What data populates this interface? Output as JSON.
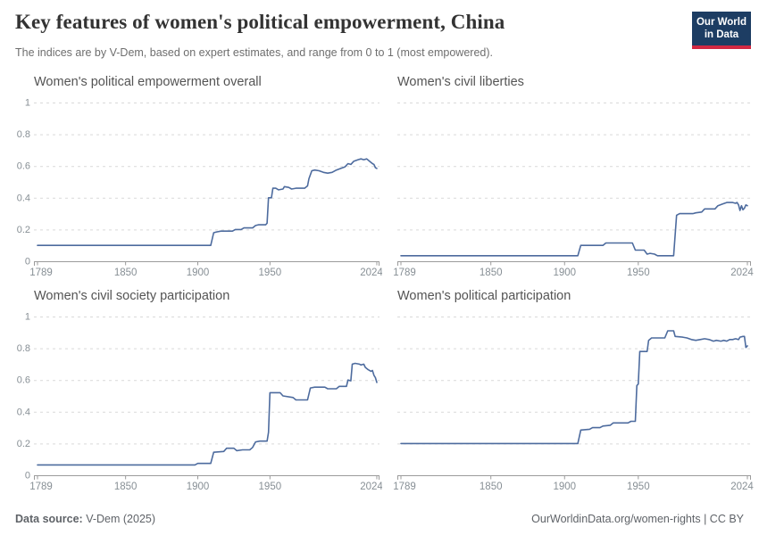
{
  "header": {
    "title": "Key features of women's political empowerment, China",
    "subtitle": "The indices are by V-Dem, based on expert estimates, and range from 0 to 1 (most empowered).",
    "logo": {
      "line1": "Our World",
      "line2": "in Data",
      "bg_color": "#1d3d63",
      "accent_color": "#d22842"
    }
  },
  "footer": {
    "source_label": "Data source:",
    "source_value": " V-Dem (2025)",
    "credit": "OurWorldinData.org/women-rights | CC BY"
  },
  "style": {
    "line_color": "#4d6b9e",
    "grid_color": "#d9d9d9",
    "axis_color": "#9b9b9b",
    "tick_label_color": "#878f95"
  },
  "axes": {
    "x_domain": [
      1789,
      2024
    ],
    "y_domain": [
      0,
      1
    ],
    "x_ticks": [
      1789,
      1850,
      1900,
      1950,
      2024
    ],
    "x_tick_labels": [
      "1789",
      "1850",
      "1900",
      "1950",
      "2024"
    ],
    "y_ticks": [
      0,
      0.2,
      0.4,
      0.6,
      0.8,
      1
    ],
    "y_tick_labels": [
      "0",
      "0.2",
      "0.4",
      "0.6",
      "0.8",
      "1"
    ],
    "y_gridline_values": [
      0.2,
      0.4,
      0.6,
      0.8,
      1
    ],
    "grid": "dashed",
    "legend": "none"
  },
  "chart_data": [
    {
      "type": "line",
      "title": "Women's political empowerment overall",
      "show_y_labels": true,
      "ylim": [
        0,
        1
      ],
      "points": [
        [
          1789,
          0.1
        ],
        [
          1909,
          0.1
        ],
        [
          1911,
          0.18
        ],
        [
          1913,
          0.185
        ],
        [
          1916,
          0.19
        ],
        [
          1924,
          0.19
        ],
        [
          1926,
          0.2
        ],
        [
          1930,
          0.2
        ],
        [
          1932,
          0.21
        ],
        [
          1938,
          0.21
        ],
        [
          1940,
          0.225
        ],
        [
          1942,
          0.23
        ],
        [
          1947,
          0.23
        ],
        [
          1948,
          0.24
        ],
        [
          1949,
          0.4
        ],
        [
          1951,
          0.4
        ],
        [
          1952,
          0.46
        ],
        [
          1954,
          0.46
        ],
        [
          1956,
          0.45
        ],
        [
          1959,
          0.455
        ],
        [
          1960,
          0.47
        ],
        [
          1963,
          0.465
        ],
        [
          1965,
          0.455
        ],
        [
          1968,
          0.46
        ],
        [
          1974,
          0.46
        ],
        [
          1976,
          0.475
        ],
        [
          1977,
          0.52
        ],
        [
          1979,
          0.57
        ],
        [
          1981,
          0.575
        ],
        [
          1984,
          0.57
        ],
        [
          1987,
          0.56
        ],
        [
          1990,
          0.555
        ],
        [
          1993,
          0.56
        ],
        [
          1996,
          0.575
        ],
        [
          1999,
          0.585
        ],
        [
          2002,
          0.595
        ],
        [
          2004,
          0.615
        ],
        [
          2006,
          0.61
        ],
        [
          2008,
          0.63
        ],
        [
          2011,
          0.64
        ],
        [
          2013,
          0.645
        ],
        [
          2015,
          0.64
        ],
        [
          2017,
          0.645
        ],
        [
          2019,
          0.63
        ],
        [
          2021,
          0.615
        ],
        [
          2022,
          0.61
        ],
        [
          2023,
          0.59
        ],
        [
          2024,
          0.585
        ]
      ]
    },
    {
      "type": "line",
      "title": "Women's civil liberties",
      "show_y_labels": false,
      "ylim": [
        0,
        1
      ],
      "points": [
        [
          1789,
          0.035
        ],
        [
          1909,
          0.035
        ],
        [
          1911,
          0.1
        ],
        [
          1926,
          0.1
        ],
        [
          1928,
          0.115
        ],
        [
          1946,
          0.115
        ],
        [
          1948,
          0.07
        ],
        [
          1954,
          0.07
        ],
        [
          1956,
          0.045
        ],
        [
          1958,
          0.05
        ],
        [
          1961,
          0.045
        ],
        [
          1963,
          0.035
        ],
        [
          1974,
          0.035
        ],
        [
          1976,
          0.29
        ],
        [
          1978,
          0.3
        ],
        [
          1987,
          0.3
        ],
        [
          1989,
          0.305
        ],
        [
          1993,
          0.31
        ],
        [
          1995,
          0.33
        ],
        [
          2002,
          0.33
        ],
        [
          2004,
          0.35
        ],
        [
          2007,
          0.36
        ],
        [
          2010,
          0.37
        ],
        [
          2014,
          0.37
        ],
        [
          2016,
          0.365
        ],
        [
          2017,
          0.37
        ],
        [
          2018,
          0.355
        ],
        [
          2019,
          0.32
        ],
        [
          2020,
          0.35
        ],
        [
          2021,
          0.325
        ],
        [
          2022,
          0.335
        ],
        [
          2023,
          0.355
        ],
        [
          2024,
          0.35
        ]
      ]
    },
    {
      "type": "line",
      "title": "Women's civil society participation",
      "show_y_labels": true,
      "ylim": [
        0,
        1
      ],
      "points": [
        [
          1789,
          0.065
        ],
        [
          1898,
          0.065
        ],
        [
          1900,
          0.075
        ],
        [
          1909,
          0.075
        ],
        [
          1911,
          0.145
        ],
        [
          1918,
          0.15
        ],
        [
          1920,
          0.17
        ],
        [
          1925,
          0.17
        ],
        [
          1927,
          0.155
        ],
        [
          1931,
          0.16
        ],
        [
          1936,
          0.16
        ],
        [
          1938,
          0.175
        ],
        [
          1940,
          0.21
        ],
        [
          1943,
          0.215
        ],
        [
          1948,
          0.215
        ],
        [
          1949,
          0.27
        ],
        [
          1950,
          0.52
        ],
        [
          1957,
          0.52
        ],
        [
          1959,
          0.5
        ],
        [
          1966,
          0.49
        ],
        [
          1968,
          0.475
        ],
        [
          1976,
          0.475
        ],
        [
          1978,
          0.55
        ],
        [
          1981,
          0.555
        ],
        [
          1988,
          0.555
        ],
        [
          1990,
          0.545
        ],
        [
          1996,
          0.545
        ],
        [
          1998,
          0.56
        ],
        [
          2003,
          0.56
        ],
        [
          2004,
          0.6
        ],
        [
          2006,
          0.595
        ],
        [
          2007,
          0.7
        ],
        [
          2009,
          0.705
        ],
        [
          2012,
          0.7
        ],
        [
          2013,
          0.695
        ],
        [
          2015,
          0.7
        ],
        [
          2016,
          0.68
        ],
        [
          2018,
          0.665
        ],
        [
          2020,
          0.655
        ],
        [
          2021,
          0.66
        ],
        [
          2022,
          0.63
        ],
        [
          2023,
          0.615
        ],
        [
          2024,
          0.585
        ]
      ]
    },
    {
      "type": "line",
      "title": "Women's political participation",
      "show_y_labels": false,
      "ylim": [
        0,
        1
      ],
      "points": [
        [
          1789,
          0.2
        ],
        [
          1909,
          0.2
        ],
        [
          1911,
          0.285
        ],
        [
          1917,
          0.29
        ],
        [
          1919,
          0.3
        ],
        [
          1924,
          0.3
        ],
        [
          1926,
          0.31
        ],
        [
          1931,
          0.315
        ],
        [
          1933,
          0.33
        ],
        [
          1943,
          0.33
        ],
        [
          1945,
          0.34
        ],
        [
          1948,
          0.34
        ],
        [
          1949,
          0.565
        ],
        [
          1950,
          0.575
        ],
        [
          1951,
          0.78
        ],
        [
          1956,
          0.78
        ],
        [
          1957,
          0.85
        ],
        [
          1959,
          0.865
        ],
        [
          1968,
          0.865
        ],
        [
          1970,
          0.91
        ],
        [
          1974,
          0.91
        ],
        [
          1975,
          0.875
        ],
        [
          1980,
          0.87
        ],
        [
          1983,
          0.865
        ],
        [
          1986,
          0.855
        ],
        [
          1989,
          0.85
        ],
        [
          1992,
          0.855
        ],
        [
          1995,
          0.86
        ],
        [
          1998,
          0.855
        ],
        [
          2001,
          0.845
        ],
        [
          2003,
          0.85
        ],
        [
          2006,
          0.845
        ],
        [
          2008,
          0.85
        ],
        [
          2010,
          0.845
        ],
        [
          2012,
          0.855
        ],
        [
          2014,
          0.855
        ],
        [
          2016,
          0.86
        ],
        [
          2018,
          0.855
        ],
        [
          2019,
          0.87
        ],
        [
          2021,
          0.875
        ],
        [
          2022,
          0.875
        ],
        [
          2023,
          0.805
        ],
        [
          2024,
          0.815
        ]
      ]
    }
  ]
}
